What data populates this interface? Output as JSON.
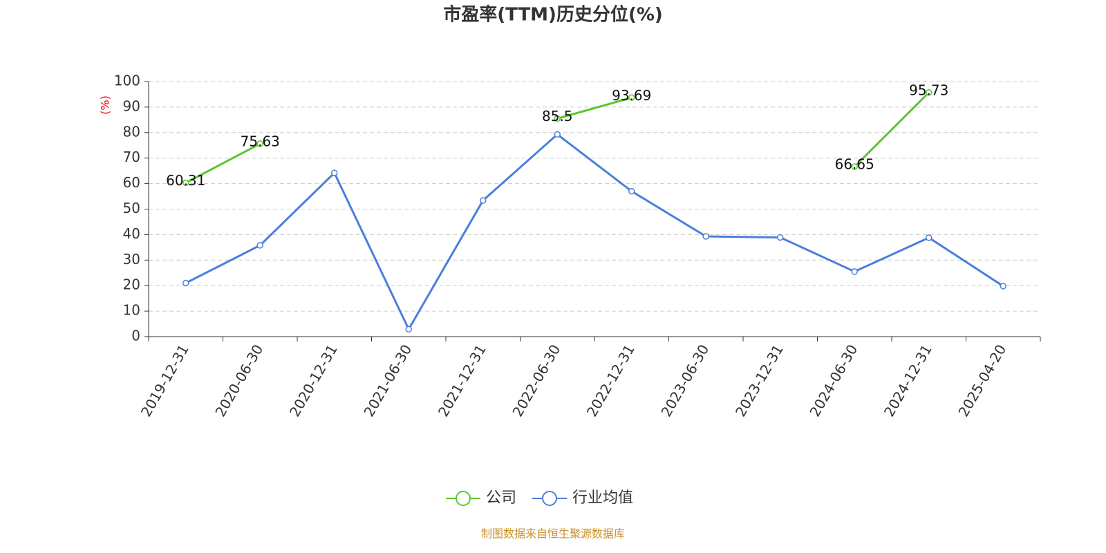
{
  "chart_data": {
    "type": "line",
    "title": "市盈率(TTM)历史分位(%)",
    "y_label": "(%)",
    "categories": [
      "2019-12-31",
      "2020-06-30",
      "2020-12-31",
      "2021-06-30",
      "2021-12-31",
      "2022-06-30",
      "2022-12-31",
      "2023-06-30",
      "2023-12-31",
      "2024-06-30",
      "2024-12-31",
      "2025-04-20"
    ],
    "series": [
      {
        "name": "公司",
        "color": "#5ac72e",
        "values": [
          60.31,
          75.63,
          null,
          null,
          null,
          85.5,
          93.69,
          null,
          null,
          66.65,
          95.73,
          null
        ]
      },
      {
        "name": "行业均值",
        "color": "#4a7fdc",
        "values": [
          21,
          35.8,
          64.2,
          2.9,
          53.4,
          79.3,
          57,
          39.3,
          38.9,
          25.5,
          38.8,
          19.8
        ]
      }
    ],
    "ylim": [
      0,
      100
    ],
    "yticks": [
      0,
      10,
      20,
      30,
      40,
      50,
      60,
      70,
      80,
      90,
      100
    ],
    "grid": true,
    "source": "制图数据来自恒生聚源数据库"
  }
}
